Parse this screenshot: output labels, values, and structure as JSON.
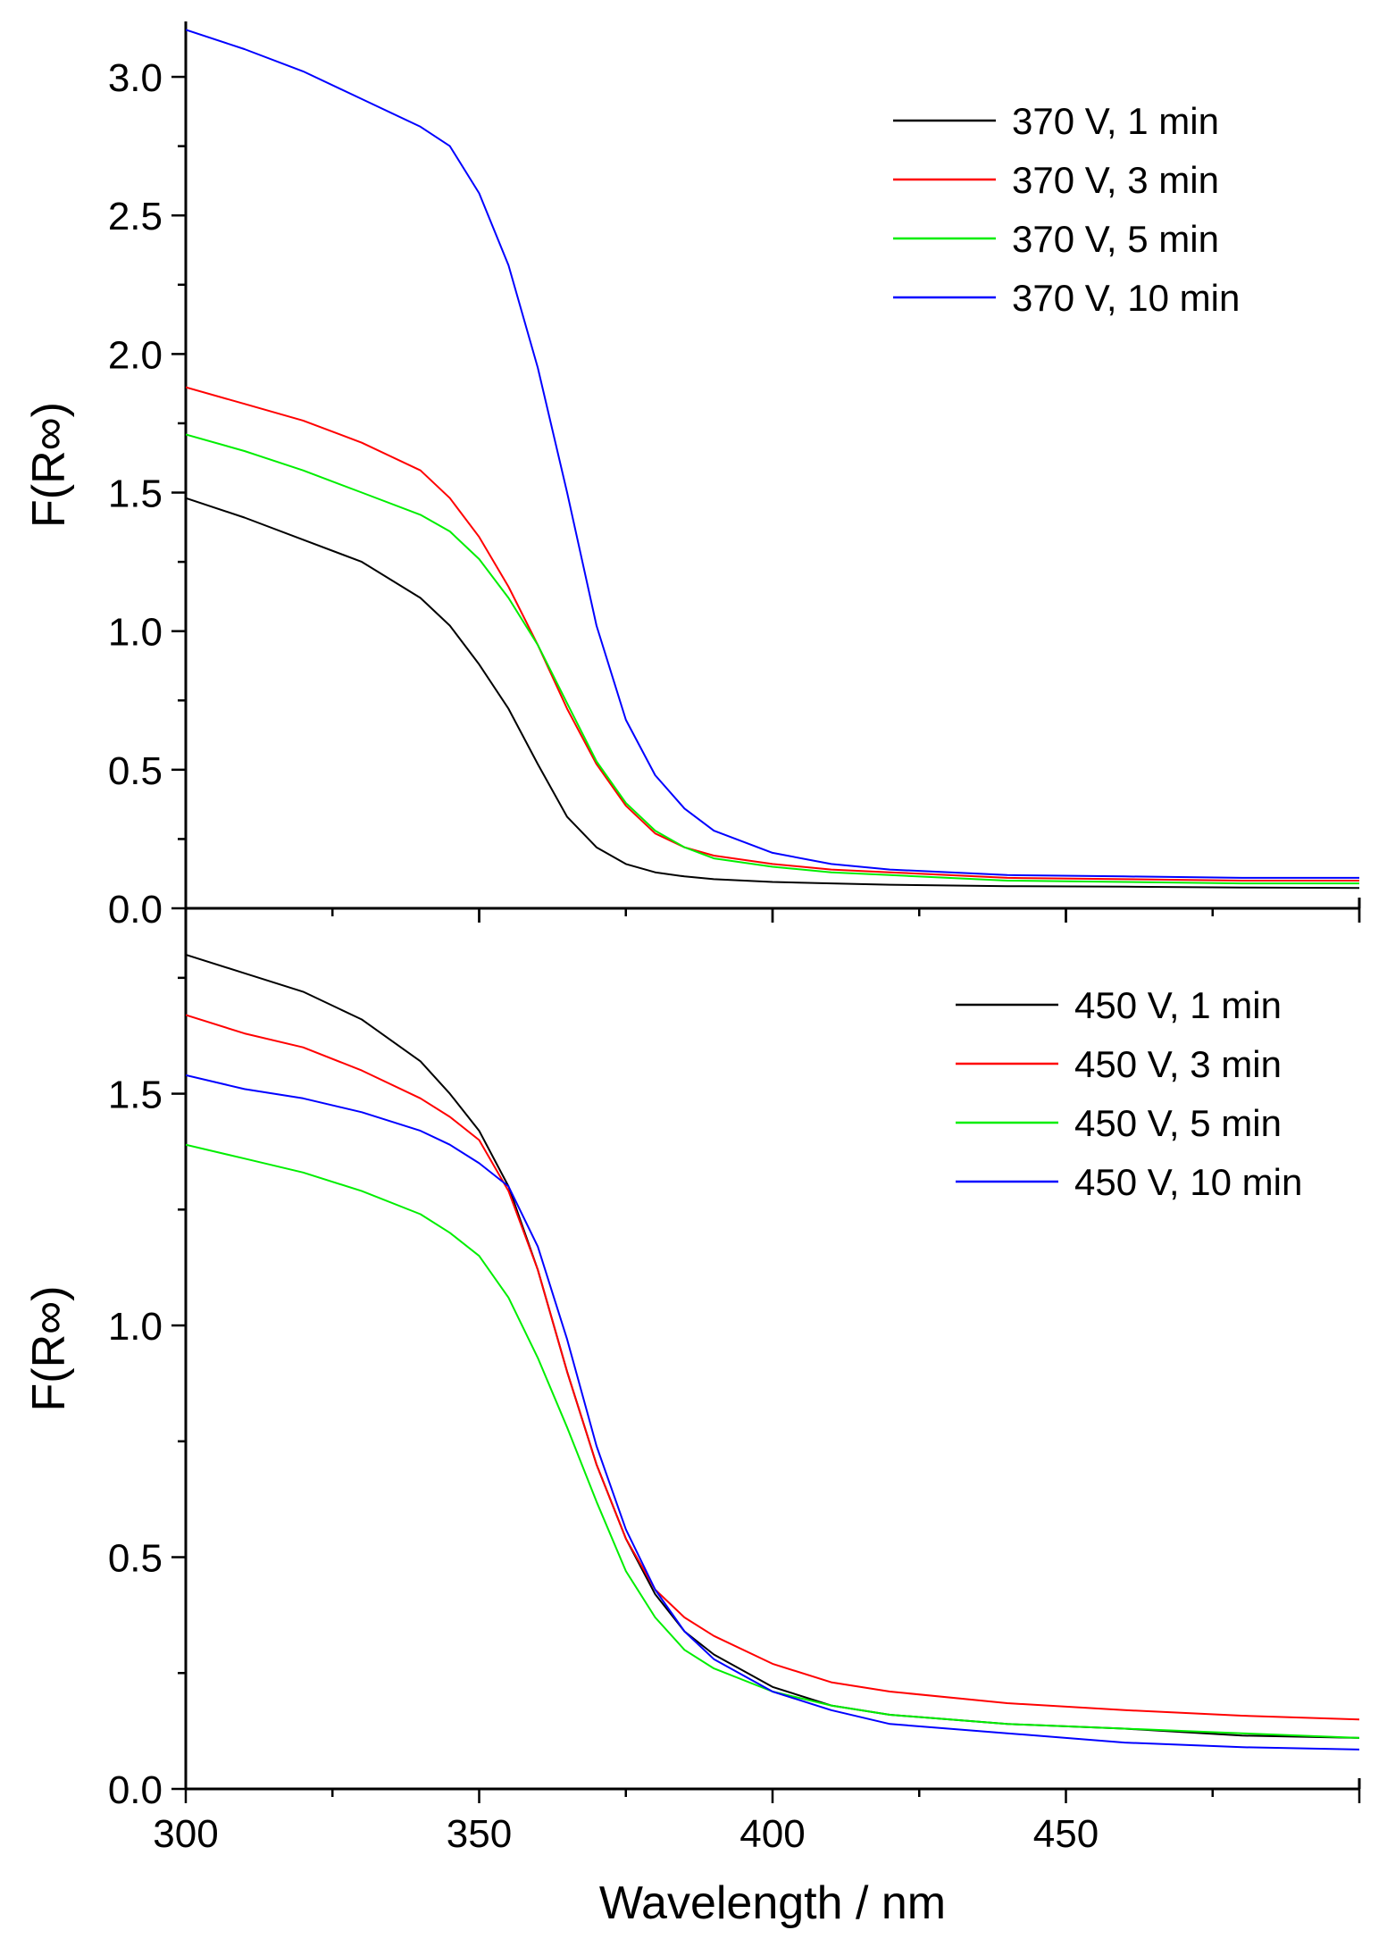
{
  "chart_data": [
    {
      "type": "line",
      "panel": "top",
      "title": "",
      "xlabel": "",
      "ylabel": "F(R∞)",
      "xlim": [
        300,
        500
      ],
      "ylim": [
        0,
        3.2
      ],
      "yticks": [
        0.0,
        0.5,
        1.0,
        1.5,
        2.0,
        2.5,
        3.0
      ],
      "ytick_labels": [
        "0.0",
        "0.5",
        "1.0",
        "1.5",
        "2.0",
        "2.5",
        "3.0"
      ],
      "grid": false,
      "legend_position": "top-right",
      "x": [
        300,
        310,
        320,
        330,
        340,
        345,
        350,
        355,
        360,
        365,
        370,
        375,
        380,
        385,
        390,
        400,
        410,
        420,
        440,
        460,
        480,
        500
      ],
      "series": [
        {
          "name": "370 V, 1 min",
          "color": "#000000",
          "values": [
            1.48,
            1.41,
            1.33,
            1.25,
            1.12,
            1.02,
            0.88,
            0.72,
            0.52,
            0.33,
            0.22,
            0.16,
            0.13,
            0.115,
            0.105,
            0.095,
            0.09,
            0.085,
            0.08,
            0.078,
            0.075,
            0.073
          ]
        },
        {
          "name": "370 V, 3 min",
          "color": "#ff0000",
          "values": [
            1.88,
            1.82,
            1.76,
            1.68,
            1.58,
            1.48,
            1.34,
            1.16,
            0.95,
            0.72,
            0.52,
            0.37,
            0.27,
            0.22,
            0.19,
            0.16,
            0.14,
            0.13,
            0.11,
            0.105,
            0.1,
            0.1
          ]
        },
        {
          "name": "370 V, 5 min",
          "color": "#00ee00",
          "values": [
            1.71,
            1.65,
            1.58,
            1.5,
            1.42,
            1.36,
            1.26,
            1.12,
            0.95,
            0.74,
            0.53,
            0.38,
            0.28,
            0.22,
            0.18,
            0.15,
            0.13,
            0.12,
            0.1,
            0.095,
            0.09,
            0.09
          ]
        },
        {
          "name": "370 V, 10 min",
          "color": "#0000ff",
          "values": [
            3.17,
            3.1,
            3.02,
            2.92,
            2.82,
            2.75,
            2.58,
            2.32,
            1.95,
            1.5,
            1.02,
            0.68,
            0.48,
            0.36,
            0.28,
            0.2,
            0.16,
            0.14,
            0.12,
            0.115,
            0.11,
            0.11
          ]
        }
      ]
    },
    {
      "type": "line",
      "panel": "bottom",
      "title": "",
      "xlabel": "Wavelength / nm",
      "ylabel": "F(R∞)",
      "xlim": [
        300,
        500
      ],
      "ylim": [
        0,
        1.9
      ],
      "xticks": [
        300,
        350,
        400,
        450
      ],
      "xtick_labels": [
        "300",
        "350",
        "400",
        "450"
      ],
      "yticks": [
        0.0,
        0.5,
        1.0,
        1.5
      ],
      "ytick_labels": [
        "0.0",
        "0.5",
        "1.0",
        "1.5"
      ],
      "grid": false,
      "legend_position": "top-right",
      "x": [
        300,
        310,
        320,
        330,
        340,
        345,
        350,
        355,
        360,
        365,
        370,
        375,
        380,
        385,
        390,
        400,
        410,
        420,
        440,
        460,
        480,
        500
      ],
      "series": [
        {
          "name": "450 V, 1 min",
          "color": "#000000",
          "values": [
            1.8,
            1.76,
            1.72,
            1.66,
            1.57,
            1.5,
            1.42,
            1.3,
            1.12,
            0.9,
            0.7,
            0.54,
            0.42,
            0.34,
            0.29,
            0.22,
            0.18,
            0.16,
            0.14,
            0.13,
            0.115,
            0.11
          ]
        },
        {
          "name": "450 V, 3 min",
          "color": "#ff0000",
          "values": [
            1.67,
            1.63,
            1.6,
            1.55,
            1.49,
            1.45,
            1.4,
            1.29,
            1.12,
            0.9,
            0.7,
            0.54,
            0.43,
            0.37,
            0.33,
            0.27,
            0.23,
            0.21,
            0.185,
            0.17,
            0.158,
            0.15
          ]
        },
        {
          "name": "450 V, 5 min",
          "color": "#00ee00",
          "values": [
            1.39,
            1.36,
            1.33,
            1.29,
            1.24,
            1.2,
            1.15,
            1.06,
            0.93,
            0.78,
            0.62,
            0.47,
            0.37,
            0.3,
            0.26,
            0.21,
            0.18,
            0.16,
            0.14,
            0.13,
            0.12,
            0.11
          ]
        },
        {
          "name": "450 V, 10 min",
          "color": "#0000ff",
          "values": [
            1.54,
            1.51,
            1.49,
            1.46,
            1.42,
            1.39,
            1.35,
            1.3,
            1.17,
            0.97,
            0.74,
            0.56,
            0.43,
            0.34,
            0.28,
            0.21,
            0.17,
            0.14,
            0.12,
            0.1,
            0.09,
            0.085
          ]
        }
      ]
    }
  ]
}
